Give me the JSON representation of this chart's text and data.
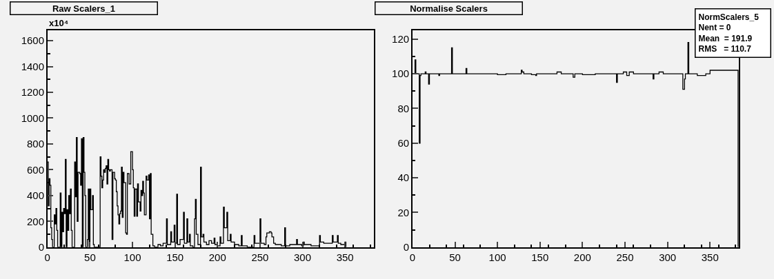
{
  "chart_data": [
    {
      "type": "step",
      "title": "Raw Scalers_1",
      "ylabel": "x10⁴",
      "xlim": [
        0,
        384
      ],
      "ylim": [
        0,
        1680
      ],
      "xticks": [
        0,
        50,
        100,
        150,
        200,
        250,
        300,
        350
      ],
      "yticks": [
        0,
        200,
        400,
        600,
        800,
        1000,
        1200,
        1400,
        1600
      ],
      "grid": false,
      "series": [
        {
          "color": "#000000",
          "x": [
            0,
            1,
            2,
            3,
            4,
            5,
            6,
            8,
            9,
            10,
            11,
            12,
            15,
            16,
            17,
            18,
            19,
            20,
            21,
            22,
            23,
            24,
            25,
            26,
            27,
            28,
            29,
            32,
            33,
            34,
            35,
            36,
            38,
            39,
            40,
            41,
            42,
            43,
            44,
            45,
            47,
            48,
            49,
            50,
            51,
            53,
            54,
            55,
            62,
            63,
            64,
            65,
            66,
            67,
            68,
            69,
            70,
            71,
            72,
            73,
            74,
            76,
            77,
            78,
            79,
            80,
            81,
            82,
            83,
            84,
            85,
            86,
            87,
            88,
            89,
            90,
            92,
            93,
            94,
            96,
            98,
            100,
            101,
            102,
            103,
            105,
            106,
            107,
            109,
            110,
            111,
            112,
            113,
            114,
            116,
            117,
            119,
            120,
            121,
            122,
            124,
            126,
            130,
            133,
            136,
            140,
            141,
            145,
            146,
            149,
            150,
            152,
            153,
            156,
            160,
            161,
            164,
            165,
            167,
            168,
            171,
            173,
            174,
            175,
            177,
            180,
            181,
            183,
            184,
            187,
            190,
            193,
            196,
            197,
            200,
            203,
            204,
            207,
            208,
            211,
            212,
            215,
            216,
            220,
            225,
            228,
            229,
            235,
            243,
            244,
            250,
            251,
            255,
            257,
            258,
            261,
            263,
            264,
            266,
            268,
            275,
            279,
            280,
            285,
            293,
            294,
            299,
            301,
            302,
            310,
            320,
            321,
            325,
            335,
            336,
            341,
            342,
            345,
            350,
            351
          ],
          "values": [
            660,
            320,
            530,
            480,
            150,
            60,
            0,
            250,
            180,
            300,
            130,
            0,
            420,
            0,
            270,
            120,
            300,
            260,
            680,
            0,
            290,
            130,
            400,
            260,
            450,
            130,
            0,
            660,
            390,
            850,
            200,
            580,
            570,
            480,
            840,
            0,
            850,
            580,
            400,
            0,
            60,
            450,
            0,
            450,
            290,
            400,
            20,
            0,
            700,
            550,
            460,
            520,
            600,
            580,
            610,
            630,
            490,
            680,
            600,
            590,
            600,
            60,
            580,
            580,
            530,
            520,
            430,
            320,
            250,
            180,
            260,
            280,
            620,
            230,
            580,
            500,
            110,
            100,
            570,
            490,
            740,
            600,
            460,
            240,
            450,
            240,
            490,
            350,
            280,
            440,
            400,
            510,
            420,
            250,
            550,
            520,
            560,
            220,
            570,
            100,
            10,
            0,
            20,
            10,
            30,
            220,
            20,
            120,
            40,
            170,
            30,
            410,
            20,
            60,
            270,
            30,
            220,
            40,
            100,
            10,
            0,
            220,
            370,
            100,
            20,
            620,
            80,
            100,
            40,
            20,
            50,
            30,
            70,
            20,
            10,
            80,
            30,
            310,
            150,
            270,
            50,
            100,
            40,
            20,
            10,
            90,
            10,
            0,
            90,
            30,
            220,
            30,
            20,
            80,
            110,
            120,
            110,
            80,
            30,
            20,
            10,
            150,
            10,
            20,
            60,
            20,
            10,
            40,
            20,
            10,
            90,
            40,
            30,
            90,
            40,
            90,
            30,
            20,
            40,
            0
          ]
        }
      ]
    },
    {
      "type": "step",
      "title": "Normalise Scalers",
      "xlim": [
        0,
        384
      ],
      "ylim": [
        0,
        125
      ],
      "xticks": [
        0,
        50,
        100,
        150,
        200,
        250,
        300,
        350
      ],
      "yticks": [
        0,
        20,
        40,
        60,
        80,
        100,
        120
      ],
      "grid": false,
      "annotations": [
        "NormScalers_5",
        "Nent = 0",
        "Mean  = 191.9",
        "RMS   = 110.7"
      ],
      "series": [
        {
          "color": "#000000",
          "x": [
            0,
            3,
            4,
            8,
            9,
            10,
            15,
            16,
            19,
            20,
            31,
            32,
            46,
            47,
            63,
            64,
            100,
            110,
            128,
            129,
            131,
            140,
            145,
            146,
            170,
            175,
            189,
            191,
            200,
            215,
            240,
            241,
            248,
            252,
            255,
            260,
            283,
            284,
            290,
            295,
            318,
            320,
            321,
            324,
            325,
            335,
            345,
            350,
            383
          ],
          "values": [
            100,
            108,
            100,
            60,
            99,
            100,
            101,
            100,
            94,
            100,
            99,
            100,
            115,
            100,
            103,
            100,
            99.5,
            100,
            102,
            101,
            100,
            99.5,
            99,
            100,
            101,
            100,
            98,
            100,
            99.5,
            100,
            95,
            100,
            101,
            99,
            101,
            100,
            97,
            100,
            101,
            100,
            91,
            97,
            100,
            118,
            100,
            99,
            100,
            102,
            0
          ]
        }
      ]
    }
  ]
}
